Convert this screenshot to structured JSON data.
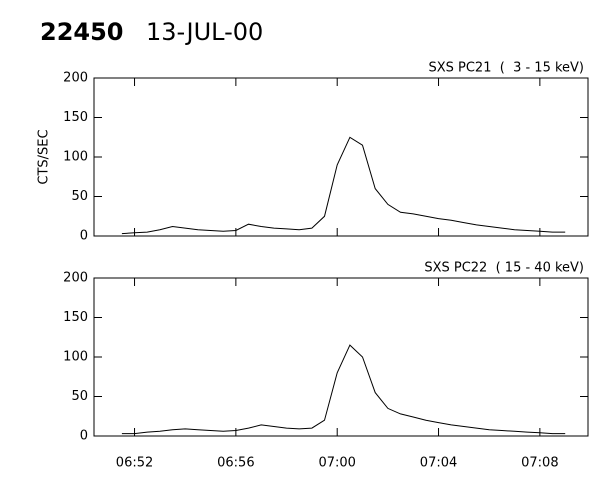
{
  "header": {
    "id": "22450",
    "date": "13-JUL-00"
  },
  "chart_data": [
    {
      "type": "line",
      "title": "SXS PC21  (  3 - 15 keV)",
      "y_label": "CTS/SEC",
      "color": "#000000",
      "x": [
        "06:51:30",
        "06:52:00",
        "06:52:30",
        "06:53:00",
        "06:53:30",
        "06:54:00",
        "06:54:30",
        "06:55:00",
        "06:55:30",
        "06:56:00",
        "06:56:30",
        "06:57:00",
        "06:57:30",
        "06:58:00",
        "06:58:30",
        "06:59:00",
        "06:59:30",
        "07:00:00",
        "07:00:30",
        "07:01:00",
        "07:01:30",
        "07:02:00",
        "07:02:30",
        "07:03:00",
        "07:03:30",
        "07:04:00",
        "07:04:30",
        "07:05:00",
        "07:05:30",
        "07:06:00",
        "07:06:30",
        "07:07:00",
        "07:07:30",
        "07:08:00",
        "07:08:30",
        "07:09:00"
      ],
      "values": [
        3,
        4,
        5,
        8,
        12,
        10,
        8,
        7,
        6,
        7,
        15,
        12,
        10,
        9,
        8,
        10,
        25,
        90,
        125,
        115,
        60,
        40,
        30,
        28,
        25,
        22,
        20,
        17,
        14,
        12,
        10,
        8,
        7,
        6,
        5,
        5
      ],
      "xlim": [
        "06:50:24",
        "07:09:54"
      ],
      "ylim": [
        0,
        200
      ],
      "yticks": [
        0,
        50,
        100,
        150,
        200
      ]
    },
    {
      "type": "line",
      "title": "SXS PC22  ( 15 - 40 keV)",
      "color": "#000000",
      "x": [
        "06:51:30",
        "06:52:00",
        "06:52:30",
        "06:53:00",
        "06:53:30",
        "06:54:00",
        "06:54:30",
        "06:55:00",
        "06:55:30",
        "06:56:00",
        "06:56:30",
        "06:57:00",
        "06:57:30",
        "06:58:00",
        "06:58:30",
        "06:59:00",
        "06:59:30",
        "07:00:00",
        "07:00:30",
        "07:01:00",
        "07:01:30",
        "07:02:00",
        "07:02:30",
        "07:03:00",
        "07:03:30",
        "07:04:00",
        "07:04:30",
        "07:05:00",
        "07:05:30",
        "07:06:00",
        "07:06:30",
        "07:07:00",
        "07:07:30",
        "07:08:00",
        "07:08:30",
        "07:09:00"
      ],
      "values": [
        3,
        3,
        5,
        6,
        8,
        9,
        8,
        7,
        6,
        7,
        10,
        14,
        12,
        10,
        9,
        10,
        20,
        80,
        115,
        100,
        55,
        35,
        28,
        24,
        20,
        17,
        14,
        12,
        10,
        8,
        7,
        6,
        5,
        4,
        3,
        3
      ],
      "xlim": [
        "06:50:24",
        "07:09:54"
      ],
      "ylim": [
        0,
        200
      ],
      "yticks": [
        0,
        50,
        100,
        150,
        200
      ],
      "xticks": [
        "06:52",
        "06:56",
        "07:00",
        "07:04",
        "07:08"
      ]
    }
  ]
}
